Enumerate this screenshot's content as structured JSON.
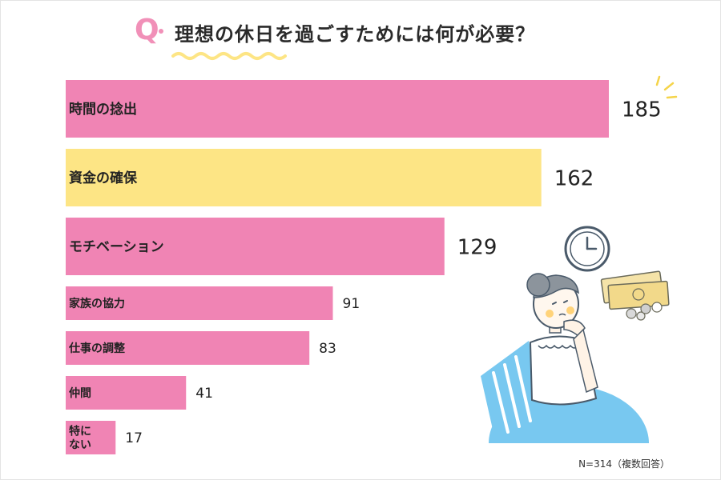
{
  "title": {
    "q_mark": "Q",
    "text": "理想の休日を過ごすためには何が必要？"
  },
  "footnote": "N=314（複数回答）",
  "colors": {
    "pink": "#f084b4",
    "yellow": "#fde585",
    "q_pink": "#f190b8",
    "wavy_yellow": "#fde585",
    "illustration_blue": "#78c8f0"
  },
  "chart_data": {
    "type": "bar",
    "orientation": "horizontal",
    "categories": [
      "時間の捻出",
      "資金の確保",
      "モチベーション",
      "家族の協力",
      "仕事の調整",
      "仲間",
      "特に\nない"
    ],
    "values": [
      185,
      162,
      129,
      91,
      83,
      41,
      17
    ],
    "highlight_colors": [
      "pink",
      "yellow",
      "pink",
      "pink",
      "pink",
      "pink",
      "pink"
    ],
    "title": "理想の休日を過ごすためには何が必要？",
    "xlim": [
      0,
      185
    ],
    "grid": false,
    "legend": "none"
  }
}
